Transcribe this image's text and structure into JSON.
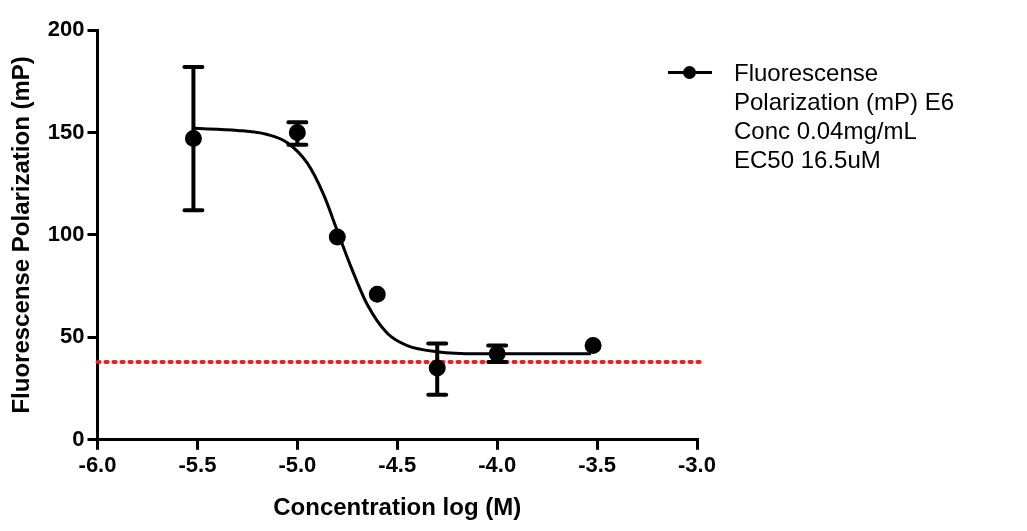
{
  "chart_data": {
    "type": "scatter",
    "xlabel": "Concentration log (M)",
    "ylabel": "Fluorescense Polarization (mP)",
    "xlim": [
      -6,
      -3
    ],
    "xticks": [
      {
        "value": -6,
        "label": "-6.0"
      },
      {
        "value": -5.5,
        "label": "-5.5"
      },
      {
        "value": -5,
        "label": "-5.0"
      },
      {
        "value": -4.5,
        "label": "-4.5"
      },
      {
        "value": -4,
        "label": "-4.0"
      },
      {
        "value": -3.5,
        "label": "-3.5"
      },
      {
        "value": -3,
        "label": "-3.0"
      }
    ],
    "ylim": [
      0,
      200
    ],
    "yticks": [
      0,
      50,
      100,
      150,
      200
    ],
    "grid": false,
    "legend": "right",
    "series": [
      {
        "name": "Fluorescense Polarization (mP) E6 Conc 0.04mg/mL EC50 16.5uM",
        "color": "#000000",
        "marker": "circle",
        "x": [
          -5.52,
          -5,
          -4.8,
          -4.6,
          -4.3,
          -4,
          -3.52
        ],
        "values": [
          147,
          150,
          99,
          71,
          35,
          42,
          46
        ],
        "errors": [
          [
            112,
            182
          ],
          [
            144,
            155
          ],
          null,
          null,
          [
            22,
            47
          ],
          [
            38,
            46
          ],
          null
        ]
      },
      {
        "type": "line",
        "color": "#000000",
        "marker": "none",
        "line_style": "solid",
        "x": [
          -5.52,
          -5.3,
          -5.15,
          -5.05,
          -4.95,
          -4.87,
          -4.8,
          -4.73,
          -4.65,
          -4.55,
          -4.45,
          -4.3,
          -4.1,
          -3.8,
          -3.53
        ],
        "values": [
          152,
          151,
          149,
          145,
          135,
          120,
          102,
          84,
          66,
          52,
          46,
          43,
          42,
          42,
          42
        ]
      }
    ],
    "ref_lines": [
      {
        "axis": "y",
        "value": 38,
        "color": "#e8201c",
        "line_style": "dotted"
      }
    ]
  }
}
